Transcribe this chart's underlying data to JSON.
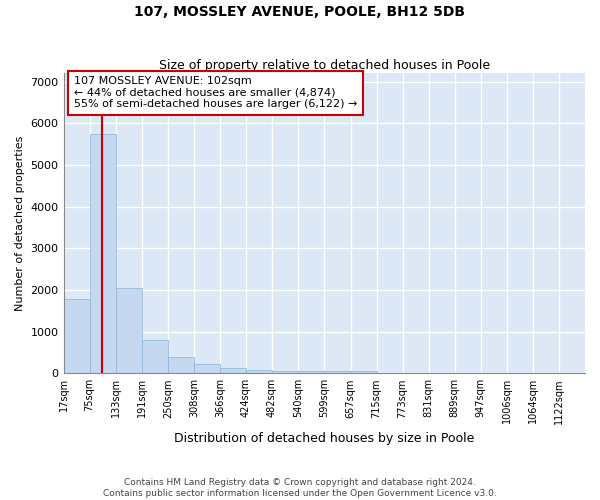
{
  "title1": "107, MOSSLEY AVENUE, POOLE, BH12 5DB",
  "title2": "Size of property relative to detached houses in Poole",
  "xlabel": "Distribution of detached houses by size in Poole",
  "ylabel": "Number of detached properties",
  "bar_color": "#c5d8f0",
  "bar_edge_color": "#8ab4d8",
  "background_color": "#dce8f5",
  "grid_color": "#ffffff",
  "fig_bg_color": "#ffffff",
  "vline_color": "#cc0000",
  "vline_x": 102,
  "annotation_text": "107 MOSSLEY AVENUE: 102sqm\n← 44% of detached houses are smaller (4,874)\n55% of semi-detached houses are larger (6,122) →",
  "annotation_box_color": "#ffffff",
  "annotation_border_color": "#cc0000",
  "bins": [
    17,
    75,
    133,
    191,
    250,
    308,
    366,
    424,
    482,
    540,
    599,
    657,
    715,
    773,
    831,
    889,
    947,
    1006,
    1064,
    1122,
    1180
  ],
  "values": [
    1780,
    5750,
    2050,
    800,
    380,
    230,
    120,
    90,
    50,
    50,
    50,
    55,
    0,
    0,
    0,
    0,
    0,
    0,
    0,
    0
  ],
  "ylim": [
    0,
    7200
  ],
  "yticks": [
    0,
    1000,
    2000,
    3000,
    4000,
    5000,
    6000,
    7000
  ],
  "footnote1": "Contains HM Land Registry data © Crown copyright and database right 2024.",
  "footnote2": "Contains public sector information licensed under the Open Government Licence v3.0.",
  "figsize": [
    6.0,
    5.0
  ],
  "dpi": 100
}
